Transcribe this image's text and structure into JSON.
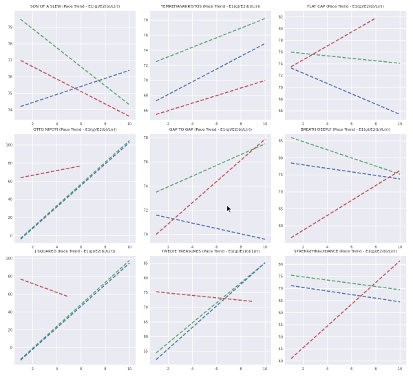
{
  "colors": {
    "background": "#eaeaf2",
    "grid": "#ffffff",
    "blue": "#4c72b0",
    "green": "#55a868",
    "red": "#c44e52"
  },
  "chart_data": [
    {
      "type": "line",
      "title": "SON OF A SLEW (Pace Trend - E1(g)/E2(b)/L(r))",
      "xticks": [
        2,
        4,
        6,
        8,
        10
      ],
      "yticks": [
        74,
        75,
        76,
        77,
        78,
        79
      ],
      "xlim": [
        0.5,
        10.5
      ],
      "ylim": [
        73.4,
        80.0
      ],
      "series": [
        {
          "name": "E1",
          "color": "green",
          "x": [
            1,
            10
          ],
          "y": [
            79.5,
            74.3
          ]
        },
        {
          "name": "E2",
          "color": "blue",
          "x": [
            1,
            10
          ],
          "y": [
            74.2,
            76.4
          ]
        },
        {
          "name": "L",
          "color": "red",
          "x": [
            1,
            10
          ],
          "y": [
            77.0,
            73.6
          ]
        }
      ]
    },
    {
      "type": "line",
      "title": "YEMREHANAKRISTOS (Pace Trend - E1(g)/E2(b)/L(r))",
      "xticks": [
        2,
        4,
        6,
        8,
        10
      ],
      "yticks": [
        66,
        68,
        70,
        72,
        74,
        76,
        78
      ],
      "xlim": [
        0.5,
        10.5
      ],
      "ylim": [
        64.8,
        79.2
      ],
      "series": [
        {
          "name": "E1",
          "color": "green",
          "x": [
            1,
            10
          ],
          "y": [
            72.5,
            78.2
          ]
        },
        {
          "name": "E2",
          "color": "blue",
          "x": [
            1,
            10
          ],
          "y": [
            67.3,
            74.9
          ]
        },
        {
          "name": "L",
          "color": "red",
          "x": [
            1,
            10
          ],
          "y": [
            65.5,
            70.0
          ]
        }
      ]
    },
    {
      "type": "line",
      "title": "FLAT CAP (Pace Trend - E1(g)/E2(b)/L(r))",
      "xticks": [
        2,
        4,
        6,
        8,
        10
      ],
      "yticks": [
        66,
        68,
        70,
        72,
        74,
        76,
        78,
        80,
        82
      ],
      "xlim": [
        0.5,
        10.5
      ],
      "ylim": [
        64.5,
        83.0
      ],
      "series": [
        {
          "name": "E1",
          "color": "green",
          "x": [
            1,
            10
          ],
          "y": [
            76.0,
            74.1
          ]
        },
        {
          "name": "E2",
          "color": "blue",
          "x": [
            1,
            10
          ],
          "y": [
            73.3,
            65.4
          ]
        },
        {
          "name": "L",
          "color": "red",
          "x": [
            1,
            8
          ],
          "y": [
            73.5,
            81.8
          ]
        }
      ]
    },
    {
      "type": "line",
      "title": "OTTO NIPOTI (Pace Trend - E1(g)/E2(b)/L(r))",
      "xticks": [
        2,
        4,
        6,
        8,
        10
      ],
      "yticks": [
        0,
        20,
        40,
        60,
        80,
        100
      ],
      "xlim": [
        0.5,
        10.5
      ],
      "ylim": [
        -8,
        112
      ],
      "series": [
        {
          "name": "E1",
          "color": "green",
          "x": [
            1,
            10
          ],
          "y": [
            -3,
            105
          ]
        },
        {
          "name": "E2",
          "color": "blue",
          "x": [
            1,
            10
          ],
          "y": [
            -4,
            103
          ]
        },
        {
          "name": "L",
          "color": "red",
          "x": [
            1,
            6
          ],
          "y": [
            64,
            77
          ]
        }
      ]
    },
    {
      "type": "line",
      "title": "GAP TO GAP (Pace Trend - E1(g)/E2(b)/L(r))",
      "xticks": [
        2,
        4,
        6,
        8,
        10
      ],
      "yticks": [
        70,
        72,
        74,
        76,
        78
      ],
      "xlim": [
        0.5,
        10.5
      ],
      "ylim": [
        69.3,
        78.3
      ],
      "series": [
        {
          "name": "E1",
          "color": "green",
          "x": [
            1,
            10
          ],
          "y": [
            73.5,
            77.5
          ]
        },
        {
          "name": "E2",
          "color": "blue",
          "x": [
            1,
            10
          ],
          "y": [
            71.6,
            69.6
          ]
        },
        {
          "name": "L",
          "color": "red",
          "x": [
            1,
            10
          ],
          "y": [
            70.0,
            77.9
          ]
        }
      ]
    },
    {
      "type": "line",
      "title": "BREATH DEEPLY (Pace Trend - E1(g)/E2(b)/L(r))",
      "xticks": [
        2,
        4,
        6,
        8,
        10
      ],
      "yticks": [
        60,
        65,
        70,
        75,
        80,
        85
      ],
      "xlim": [
        0.5,
        10.5
      ],
      "ylim": [
        55,
        87
      ],
      "series": [
        {
          "name": "E1",
          "color": "green",
          "x": [
            1,
            10
          ],
          "y": [
            86.0,
            75.2
          ]
        },
        {
          "name": "E2",
          "color": "blue",
          "x": [
            1,
            10
          ],
          "y": [
            78.5,
            73.8
          ]
        },
        {
          "name": "L",
          "color": "red",
          "x": [
            1,
            10
          ],
          "y": [
            56.5,
            76.3
          ]
        }
      ]
    },
    {
      "type": "line",
      "title": "J SQUARED (Pace Trend - E1(g)/E2(b)/L(r))",
      "xticks": [
        2,
        4,
        6,
        8,
        10
      ],
      "yticks": [
        0,
        20,
        40,
        60,
        80,
        100
      ],
      "xlim": [
        0.5,
        10.5
      ],
      "ylim": [
        -19,
        103
      ],
      "series": [
        {
          "name": "E1",
          "color": "green",
          "x": [
            1,
            10
          ],
          "y": [
            -13,
            98
          ]
        },
        {
          "name": "E2",
          "color": "blue",
          "x": [
            1,
            10
          ],
          "y": [
            -14,
            95
          ]
        },
        {
          "name": "L",
          "color": "red",
          "x": [
            1,
            5
          ],
          "y": [
            77,
            57
          ]
        }
      ]
    },
    {
      "type": "line",
      "title": "TWELVE TREASURES (Pace Trend - E1(g)/E2(b)/L(r))",
      "xticks": [
        2,
        4,
        6,
        8,
        10
      ],
      "yticks": [
        55,
        60,
        65,
        70,
        75,
        80,
        85
      ],
      "xlim": [
        0.5,
        10.5
      ],
      "ylim": [
        50.5,
        87.5
      ],
      "series": [
        {
          "name": "E1",
          "color": "green",
          "x": [
            1,
            10
          ],
          "y": [
            54.5,
            85.2
          ]
        },
        {
          "name": "E2",
          "color": "blue",
          "x": [
            1,
            10
          ],
          "y": [
            52.2,
            85.2
          ]
        },
        {
          "name": "L",
          "color": "red",
          "x": [
            1,
            9
          ],
          "y": [
            75.3,
            72.0
          ]
        }
      ]
    },
    {
      "type": "line",
      "title": "STRENGTHNGUIDANCE (Pace Trend - E1(g)/E2(b)/L(r))",
      "xticks": [
        2,
        4,
        6,
        8,
        10
      ],
      "yticks": [
        40,
        45,
        50,
        55,
        60,
        65,
        70,
        75,
        80
      ],
      "xlim": [
        0.5,
        10.5
      ],
      "ylim": [
        38.5,
        83.5
      ],
      "series": [
        {
          "name": "E1",
          "color": "green",
          "x": [
            1,
            10
          ],
          "y": [
            75.5,
            69.5
          ]
        },
        {
          "name": "E2",
          "color": "blue",
          "x": [
            1,
            10
          ],
          "y": [
            71.2,
            64.5
          ]
        },
        {
          "name": "L",
          "color": "red",
          "x": [
            1,
            10
          ],
          "y": [
            41.0,
            81.5
          ]
        }
      ]
    }
  ]
}
